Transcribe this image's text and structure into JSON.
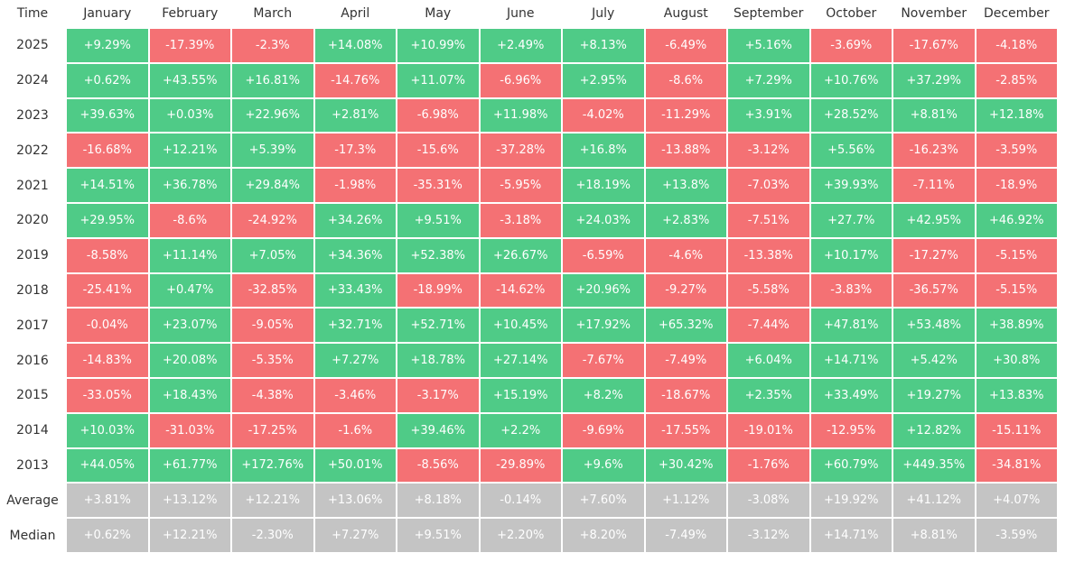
{
  "table": {
    "columns": [
      "Time",
      "January",
      "February",
      "March",
      "April",
      "May",
      "June",
      "July",
      "August",
      "September",
      "October",
      "November",
      "December"
    ],
    "colors": {
      "positive": "#4fcb87",
      "negative": "#f47174",
      "summary": "#c4c4c4"
    },
    "rows": [
      {
        "label": "2025",
        "cells": [
          "+9.29%",
          "-17.39%",
          "-2.3%",
          "+14.08%",
          "+10.99%",
          "+2.49%",
          "+8.13%",
          "-6.49%",
          "+5.16%",
          "-3.69%",
          "-17.67%",
          "-4.18%"
        ]
      },
      {
        "label": "2024",
        "cells": [
          "+0.62%",
          "+43.55%",
          "+16.81%",
          "-14.76%",
          "+11.07%",
          "-6.96%",
          "+2.95%",
          "-8.6%",
          "+7.29%",
          "+10.76%",
          "+37.29%",
          "-2.85%"
        ]
      },
      {
        "label": "2023",
        "cells": [
          "+39.63%",
          "+0.03%",
          "+22.96%",
          "+2.81%",
          "-6.98%",
          "+11.98%",
          "-4.02%",
          "-11.29%",
          "+3.91%",
          "+28.52%",
          "+8.81%",
          "+12.18%"
        ]
      },
      {
        "label": "2022",
        "cells": [
          "-16.68%",
          "+12.21%",
          "+5.39%",
          "-17.3%",
          "-15.6%",
          "-37.28%",
          "+16.8%",
          "-13.88%",
          "-3.12%",
          "+5.56%",
          "-16.23%",
          "-3.59%"
        ]
      },
      {
        "label": "2021",
        "cells": [
          "+14.51%",
          "+36.78%",
          "+29.84%",
          "-1.98%",
          "-35.31%",
          "-5.95%",
          "+18.19%",
          "+13.8%",
          "-7.03%",
          "+39.93%",
          "-7.11%",
          "-18.9%"
        ]
      },
      {
        "label": "2020",
        "cells": [
          "+29.95%",
          "-8.6%",
          "-24.92%",
          "+34.26%",
          "+9.51%",
          "-3.18%",
          "+24.03%",
          "+2.83%",
          "-7.51%",
          "+27.7%",
          "+42.95%",
          "+46.92%"
        ]
      },
      {
        "label": "2019",
        "cells": [
          "-8.58%",
          "+11.14%",
          "+7.05%",
          "+34.36%",
          "+52.38%",
          "+26.67%",
          "-6.59%",
          "-4.6%",
          "-13.38%",
          "+10.17%",
          "-17.27%",
          "-5.15%"
        ]
      },
      {
        "label": "2018",
        "cells": [
          "-25.41%",
          "+0.47%",
          "-32.85%",
          "+33.43%",
          "-18.99%",
          "-14.62%",
          "+20.96%",
          "-9.27%",
          "-5.58%",
          "-3.83%",
          "-36.57%",
          "-5.15%"
        ]
      },
      {
        "label": "2017",
        "cells": [
          "-0.04%",
          "+23.07%",
          "-9.05%",
          "+32.71%",
          "+52.71%",
          "+10.45%",
          "+17.92%",
          "+65.32%",
          "-7.44%",
          "+47.81%",
          "+53.48%",
          "+38.89%"
        ]
      },
      {
        "label": "2016",
        "cells": [
          "-14.83%",
          "+20.08%",
          "-5.35%",
          "+7.27%",
          "+18.78%",
          "+27.14%",
          "-7.67%",
          "-7.49%",
          "+6.04%",
          "+14.71%",
          "+5.42%",
          "+30.8%"
        ]
      },
      {
        "label": "2015",
        "cells": [
          "-33.05%",
          "+18.43%",
          "-4.38%",
          "-3.46%",
          "-3.17%",
          "+15.19%",
          "+8.2%",
          "-18.67%",
          "+2.35%",
          "+33.49%",
          "+19.27%",
          "+13.83%"
        ]
      },
      {
        "label": "2014",
        "cells": [
          "+10.03%",
          "-31.03%",
          "-17.25%",
          "-1.6%",
          "+39.46%",
          "+2.2%",
          "-9.69%",
          "-17.55%",
          "-19.01%",
          "-12.95%",
          "+12.82%",
          "-15.11%"
        ]
      },
      {
        "label": "2013",
        "cells": [
          "+44.05%",
          "+61.77%",
          "+172.76%",
          "+50.01%",
          "-8.56%",
          "-29.89%",
          "+9.6%",
          "+30.42%",
          "-1.76%",
          "+60.79%",
          "+449.35%",
          "-34.81%"
        ]
      }
    ],
    "summary_rows": [
      {
        "label": "Average",
        "cells": [
          "+3.81%",
          "+13.12%",
          "+12.21%",
          "+13.06%",
          "+8.18%",
          "-0.14%",
          "+7.60%",
          "+1.12%",
          "-3.08%",
          "+19.92%",
          "+41.12%",
          "+4.07%"
        ]
      },
      {
        "label": "Median",
        "cells": [
          "+0.62%",
          "+12.21%",
          "-2.30%",
          "+7.27%",
          "+9.51%",
          "+2.20%",
          "+8.20%",
          "-7.49%",
          "-3.12%",
          "+14.71%",
          "+8.81%",
          "-3.59%"
        ]
      }
    ]
  }
}
